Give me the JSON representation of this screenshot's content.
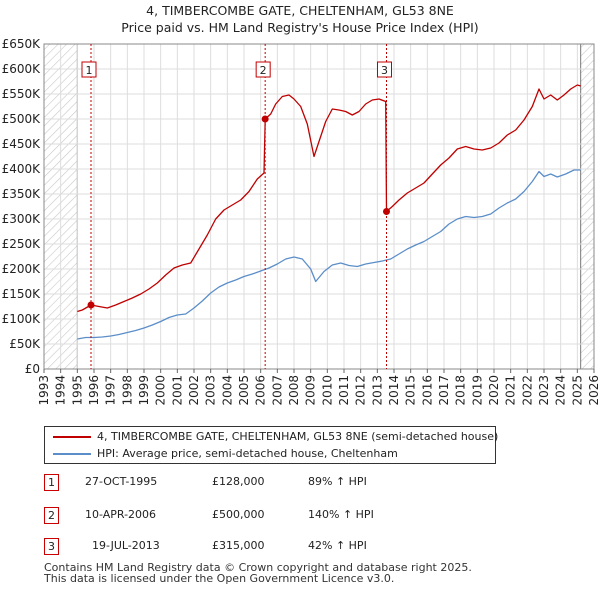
{
  "title": {
    "line1": "4, TIMBERCOMBE GATE, CHELTENHAM, GL53 8NE",
    "line2": "Price paid vs. HM Land Registry's House Price Index (HPI)"
  },
  "chart_data": {
    "type": "line",
    "x_range": [
      1993,
      2026
    ],
    "ylim": [
      0,
      650000
    ],
    "y_ticks": [
      {
        "value": 0,
        "label": "£0"
      },
      {
        "value": 50000,
        "label": "£50K"
      },
      {
        "value": 100000,
        "label": "£100K"
      },
      {
        "value": 150000,
        "label": "£150K"
      },
      {
        "value": 200000,
        "label": "£200K"
      },
      {
        "value": 250000,
        "label": "£250K"
      },
      {
        "value": 300000,
        "label": "£300K"
      },
      {
        "value": 350000,
        "label": "£350K"
      },
      {
        "value": 400000,
        "label": "£400K"
      },
      {
        "value": 450000,
        "label": "£450K"
      },
      {
        "value": 500000,
        "label": "£500K"
      },
      {
        "value": 550000,
        "label": "£550K"
      },
      {
        "value": 600000,
        "label": "£600K"
      },
      {
        "value": 650000,
        "label": "£650K"
      }
    ],
    "x_ticks": [
      "1993",
      "1994",
      "1995",
      "1996",
      "1997",
      "1998",
      "1999",
      "2000",
      "2001",
      "2002",
      "2003",
      "2004",
      "2005",
      "2006",
      "2007",
      "2008",
      "2009",
      "2010",
      "2011",
      "2012",
      "2013",
      "2014",
      "2015",
      "2016",
      "2017",
      "2018",
      "2019",
      "2020",
      "2021",
      "2022",
      "2023",
      "2024",
      "2025",
      "2026"
    ],
    "hatched_regions": [
      [
        1993,
        1995.0
      ],
      [
        2025.2,
        2026
      ]
    ],
    "series": [
      {
        "name": "4, TIMBERCOMBE GATE, CHELTENHAM, GL53 8NE (semi-detached house)",
        "color": "#c00000",
        "points": [
          [
            1995.0,
            115000
          ],
          [
            1995.3,
            118000
          ],
          [
            1995.82,
            128000
          ],
          [
            1996.3,
            125000
          ],
          [
            1996.8,
            122000
          ],
          [
            1997.3,
            128000
          ],
          [
            1997.8,
            135000
          ],
          [
            1998.3,
            142000
          ],
          [
            1998.8,
            150000
          ],
          [
            1999.3,
            160000
          ],
          [
            1999.8,
            172000
          ],
          [
            2000.3,
            188000
          ],
          [
            2000.8,
            202000
          ],
          [
            2001.3,
            208000
          ],
          [
            2001.8,
            212000
          ],
          [
            2002.3,
            240000
          ],
          [
            2002.8,
            268000
          ],
          [
            2003.3,
            300000
          ],
          [
            2003.8,
            318000
          ],
          [
            2004.3,
            328000
          ],
          [
            2004.8,
            338000
          ],
          [
            2005.3,
            355000
          ],
          [
            2005.8,
            380000
          ],
          [
            2006.2,
            392000
          ],
          [
            2006.27,
            500000
          ],
          [
            2006.6,
            510000
          ],
          [
            2006.9,
            530000
          ],
          [
            2007.3,
            545000
          ],
          [
            2007.7,
            548000
          ],
          [
            2008.0,
            540000
          ],
          [
            2008.4,
            525000
          ],
          [
            2008.8,
            490000
          ],
          [
            2009.2,
            425000
          ],
          [
            2009.5,
            455000
          ],
          [
            2009.9,
            495000
          ],
          [
            2010.3,
            520000
          ],
          [
            2010.7,
            518000
          ],
          [
            2011.1,
            515000
          ],
          [
            2011.5,
            508000
          ],
          [
            2011.9,
            515000
          ],
          [
            2012.3,
            530000
          ],
          [
            2012.7,
            538000
          ],
          [
            2013.1,
            540000
          ],
          [
            2013.5,
            535000
          ],
          [
            2013.55,
            315000
          ],
          [
            2013.9,
            325000
          ],
          [
            2014.3,
            338000
          ],
          [
            2014.8,
            352000
          ],
          [
            2015.3,
            362000
          ],
          [
            2015.8,
            372000
          ],
          [
            2016.3,
            390000
          ],
          [
            2016.8,
            408000
          ],
          [
            2017.3,
            422000
          ],
          [
            2017.8,
            440000
          ],
          [
            2018.3,
            445000
          ],
          [
            2018.8,
            440000
          ],
          [
            2019.3,
            438000
          ],
          [
            2019.8,
            442000
          ],
          [
            2020.3,
            452000
          ],
          [
            2020.8,
            468000
          ],
          [
            2021.3,
            478000
          ],
          [
            2021.8,
            498000
          ],
          [
            2022.3,
            525000
          ],
          [
            2022.7,
            560000
          ],
          [
            2023.0,
            540000
          ],
          [
            2023.4,
            548000
          ],
          [
            2023.8,
            538000
          ],
          [
            2024.2,
            548000
          ],
          [
            2024.6,
            560000
          ],
          [
            2025.0,
            568000
          ],
          [
            2025.2,
            566000
          ]
        ]
      },
      {
        "name": "HPI: Average price, semi-detached house, Cheltenham",
        "color": "#5b8ec9",
        "points": [
          [
            1995.0,
            60000
          ],
          [
            1995.5,
            63000
          ],
          [
            1996.0,
            63000
          ],
          [
            1996.5,
            64000
          ],
          [
            1997.0,
            66000
          ],
          [
            1997.5,
            69000
          ],
          [
            1998.0,
            73000
          ],
          [
            1998.5,
            77000
          ],
          [
            1999.0,
            82000
          ],
          [
            1999.5,
            88000
          ],
          [
            2000.0,
            95000
          ],
          [
            2000.5,
            103000
          ],
          [
            2001.0,
            108000
          ],
          [
            2001.5,
            110000
          ],
          [
            2002.0,
            122000
          ],
          [
            2002.5,
            136000
          ],
          [
            2003.0,
            152000
          ],
          [
            2003.5,
            164000
          ],
          [
            2004.0,
            172000
          ],
          [
            2004.5,
            178000
          ],
          [
            2005.0,
            185000
          ],
          [
            2005.5,
            190000
          ],
          [
            2006.0,
            196000
          ],
          [
            2006.5,
            202000
          ],
          [
            2007.0,
            210000
          ],
          [
            2007.5,
            220000
          ],
          [
            2008.0,
            224000
          ],
          [
            2008.5,
            220000
          ],
          [
            2009.0,
            200000
          ],
          [
            2009.3,
            175000
          ],
          [
            2009.8,
            195000
          ],
          [
            2010.3,
            208000
          ],
          [
            2010.8,
            212000
          ],
          [
            2011.3,
            207000
          ],
          [
            2011.8,
            205000
          ],
          [
            2012.3,
            210000
          ],
          [
            2012.8,
            213000
          ],
          [
            2013.3,
            216000
          ],
          [
            2013.8,
            220000
          ],
          [
            2014.3,
            230000
          ],
          [
            2014.8,
            240000
          ],
          [
            2015.3,
            248000
          ],
          [
            2015.8,
            255000
          ],
          [
            2016.3,
            265000
          ],
          [
            2016.8,
            275000
          ],
          [
            2017.3,
            290000
          ],
          [
            2017.8,
            300000
          ],
          [
            2018.3,
            305000
          ],
          [
            2018.8,
            303000
          ],
          [
            2019.3,
            305000
          ],
          [
            2019.8,
            310000
          ],
          [
            2020.3,
            322000
          ],
          [
            2020.8,
            332000
          ],
          [
            2021.3,
            340000
          ],
          [
            2021.8,
            355000
          ],
          [
            2022.3,
            375000
          ],
          [
            2022.7,
            395000
          ],
          [
            2023.0,
            385000
          ],
          [
            2023.4,
            390000
          ],
          [
            2023.8,
            384000
          ],
          [
            2024.3,
            390000
          ],
          [
            2024.8,
            398000
          ],
          [
            2025.2,
            398000
          ]
        ]
      }
    ],
    "markers": [
      {
        "label": "1",
        "x": 1995.82,
        "y": 128000
      },
      {
        "label": "2",
        "x": 2006.27,
        "y": 500000
      },
      {
        "label": "3",
        "x": 2013.55,
        "y": 315000
      }
    ],
    "marker_color": "#c00000",
    "grid_color": "#dddddd"
  },
  "legend": {
    "items": [
      {
        "label": "4, TIMBERCOMBE GATE, CHELTENHAM, GL53 8NE (semi-detached house)",
        "color": "#c00000"
      },
      {
        "label": "HPI: Average price, semi-detached house, Cheltenham",
        "color": "#5b8ec9"
      }
    ]
  },
  "transactions": [
    {
      "num": "1",
      "date": "27-OCT-1995",
      "price": "£128,000",
      "hpi": "89% ↑ HPI"
    },
    {
      "num": "2",
      "date": "10-APR-2006",
      "price": "£500,000",
      "hpi": "140% ↑ HPI"
    },
    {
      "num": "3",
      "date": "19-JUL-2013",
      "price": "£315,000",
      "hpi": "42% ↑ HPI"
    }
  ],
  "footer": {
    "line1": "Contains HM Land Registry data © Crown copyright and database right 2025.",
    "line2": "This data is licensed under the Open Government Licence v3.0."
  }
}
